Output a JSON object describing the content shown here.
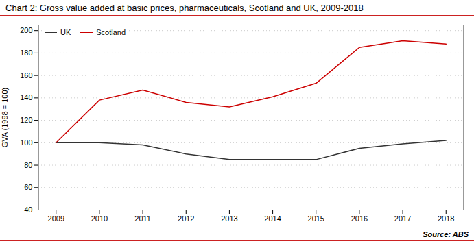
{
  "chart_data": {
    "type": "line",
    "title": "Chart 2: Gross value added at basic prices, pharmaceuticals, Scotland and UK, 2009-2018",
    "source": "Source: ABS",
    "y_label": "GVA (1998 = 100)",
    "x": [
      2009,
      2010,
      2011,
      2012,
      2013,
      2014,
      2015,
      2016,
      2017,
      2018
    ],
    "series": [
      {
        "name": "UK",
        "color": "#333333",
        "values": [
          100,
          100,
          98,
          90,
          85,
          85,
          85,
          95,
          99,
          102
        ]
      },
      {
        "name": "Scotland",
        "color": "#cc0000",
        "values": [
          100,
          138,
          147,
          136,
          132,
          141,
          153,
          185,
          191,
          188
        ]
      }
    ],
    "xlim": [
      2008.6,
      2018.4
    ],
    "xticks": [
      2009,
      2010,
      2011,
      2012,
      2013,
      2014,
      2015,
      2016,
      2017,
      2018
    ],
    "ylim": [
      40,
      205
    ],
    "yticks": [
      40,
      60,
      80,
      100,
      120,
      140,
      160,
      180,
      200
    ],
    "grid": "y",
    "legend": "upper left"
  }
}
